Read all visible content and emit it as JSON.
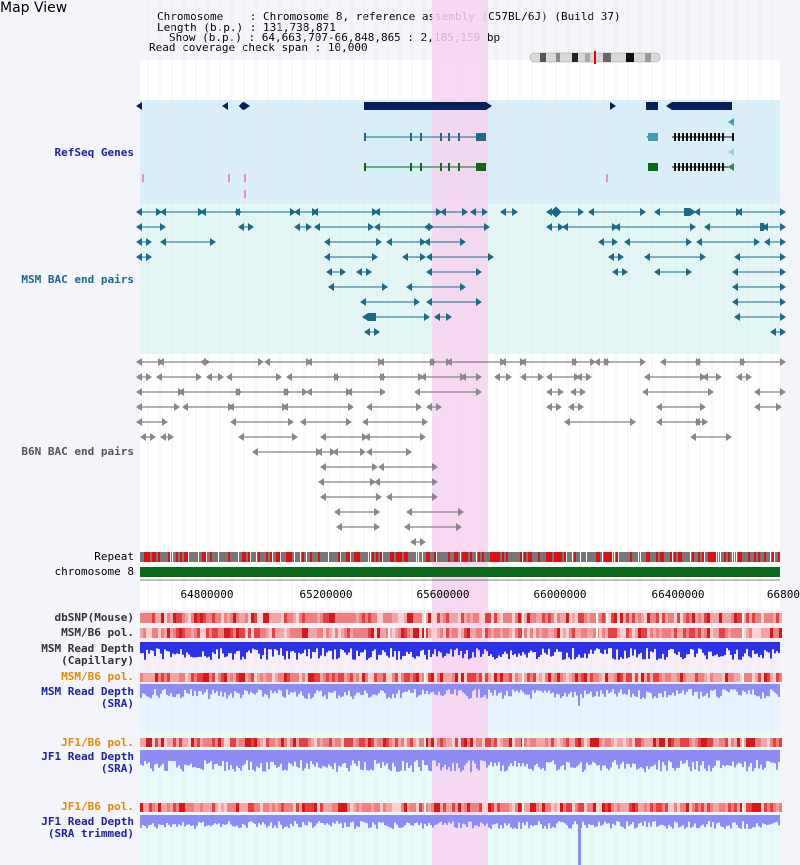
{
  "page_title": "Map View",
  "info": {
    "chromosome_label": "Chromosome",
    "chromosome_value": "Chromosome 8, reference assembly (C57BL/6J) (Build 37)",
    "length_label": "Length (b.p.)",
    "length_value": "131,738,871",
    "show_label": "Show (b.p.)",
    "show_value": "64,663,707-66,848,865 : 2,185,159 bp",
    "coverage_label": "Read coverage check span",
    "coverage_value": "10,000"
  },
  "tracks": {
    "refseq": "RefSeq Genes",
    "msm_bac": "MSM BAC end pairs",
    "b6n_bac": "B6N BAC end pairs",
    "repeat": "Repeat",
    "chromosome": "chromosome 8",
    "dbsnp": "dbSNP(Mouse)",
    "msm_b6_pol": "MSM/B6 pol.",
    "msm_depth_cap_1": "MSM Read Depth",
    "msm_depth_cap_2": "(Capillary)",
    "msm_b6_pol2": "MSM/B6 pol.",
    "msm_depth_sra_1": "MSM Read Depth",
    "msm_depth_sra_2": "(SRA)",
    "jf1_b6_pol": "JF1/B6 pol.",
    "jf1_depth_1": "JF1 Read Depth",
    "jf1_depth_2": "(SRA)",
    "jf1_b6_pol2": "JF1/B6 pol.",
    "jf1_trim_1": "JF1 Read Depth",
    "jf1_trim_2": "(SRA trimmed)"
  },
  "axis_ticks": [
    "64800000",
    "65200000",
    "65600000",
    "66000000",
    "66400000",
    "66800"
  ],
  "colors": {
    "refseq_bg": "#d8eef8",
    "bac_bg": "#e2f6f6",
    "highlight": "#f7d2f0",
    "gene_dark": "#06205a",
    "gene_teal": "#1a6a8a",
    "chrom_green": "#0a6a1a",
    "depth_blue": "#2b32e8",
    "depth_light": "#8c8cf4"
  }
}
